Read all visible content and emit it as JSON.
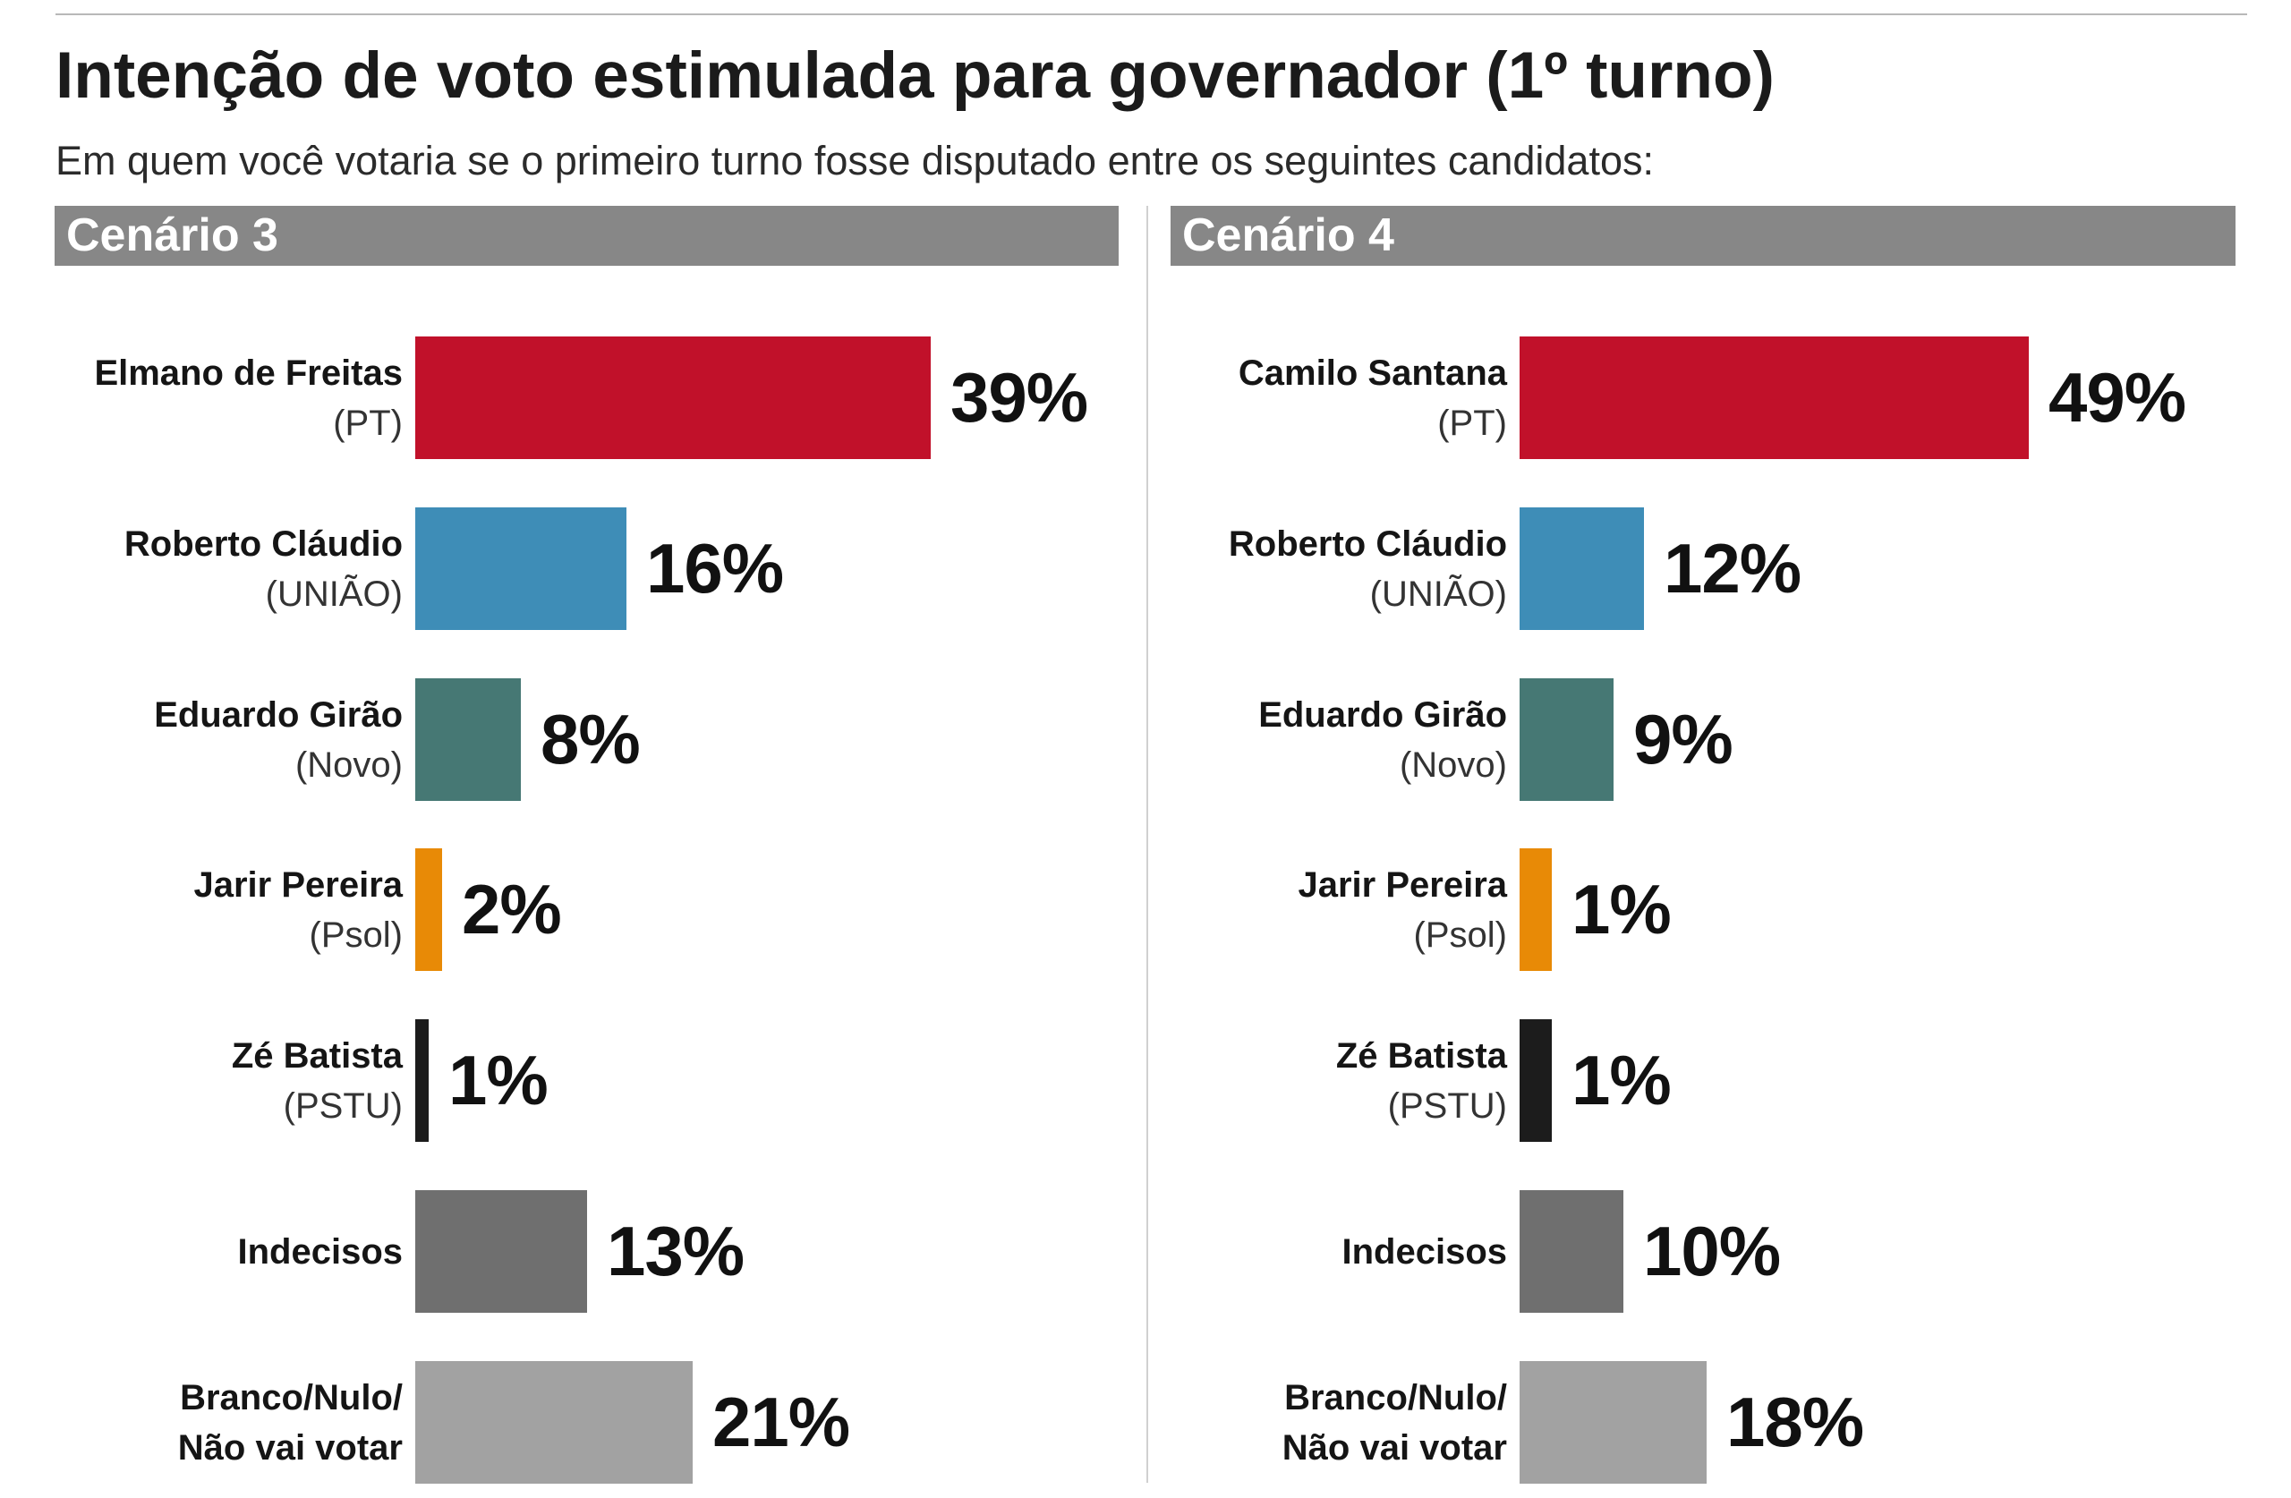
{
  "header": {
    "title": "Intenção de voto estimulada para governador (1º turno)",
    "subtitle": "Em quem você votaria se o primeiro turno fosse disputado entre os seguintes candidatos:"
  },
  "chart_data": [
    {
      "type": "bar",
      "title": "Cenário 3",
      "categories": [
        "Elmano de Freitas",
        "Roberto Cláudio",
        "Eduardo Girão",
        "Jarir Pereira",
        "Zé Batista",
        "Indecisos",
        "Branco/Nulo/\nNão vai votar"
      ],
      "parties": [
        "(PT)",
        "(UNIÃO)",
        "(Novo)",
        "(Psol)",
        "(PSTU)",
        "",
        ""
      ],
      "values": [
        39,
        16,
        8,
        2,
        1,
        13,
        21
      ],
      "value_labels": [
        "39%",
        "16%",
        "8%",
        "2%",
        "1%",
        "13%",
        "21%"
      ],
      "colors": [
        "#C1112A",
        "#3E8DB7",
        "#467874",
        "#E88A06",
        "#1C1C1C",
        "#6F6F6F",
        "#A2A2A2"
      ]
    },
    {
      "type": "bar",
      "title": "Cenário 4",
      "categories": [
        "Camilo Santana",
        "Roberto Cláudio",
        "Eduardo Girão",
        "Jarir Pereira",
        "Zé Batista",
        "Indecisos",
        "Branco/Nulo/\nNão vai votar"
      ],
      "parties": [
        "(PT)",
        "(UNIÃO)",
        "(Novo)",
        "(Psol)",
        "(PSTU)",
        "",
        ""
      ],
      "values": [
        49,
        12,
        9,
        1,
        1,
        10,
        18
      ],
      "value_labels": [
        "49%",
        "12%",
        "9%",
        "1%",
        "1%",
        "10%",
        "18%"
      ],
      "colors": [
        "#C1112A",
        "#3E8DB7",
        "#467874",
        "#E88A06",
        "#1C1C1C",
        "#6F6F6F",
        "#A2A2A2"
      ]
    }
  ]
}
